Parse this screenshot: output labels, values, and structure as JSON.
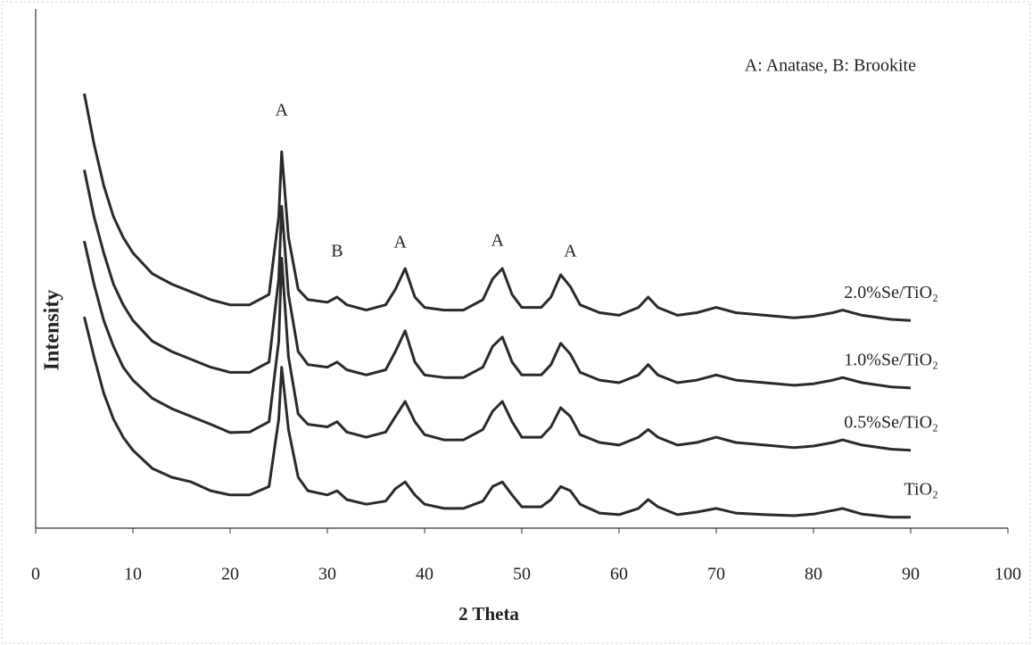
{
  "chart_data": {
    "type": "line",
    "x_label": "2  Theta",
    "y_label": "Intensity",
    "legend_note": "A: Anatase, B: Brookite",
    "annotations": [
      {
        "text": "A",
        "x": 25.3
      },
      {
        "text": "B",
        "x": 31
      },
      {
        "text": "A",
        "x": 37.5
      },
      {
        "text": "A",
        "x": 47.5
      },
      {
        "text": "A",
        "x": 55
      }
    ],
    "x": [
      5,
      6,
      7,
      8,
      9,
      10,
      12,
      14,
      16,
      18,
      20,
      22,
      24,
      25,
      25.3,
      26,
      27,
      28,
      30,
      31,
      32,
      34,
      36,
      37,
      38,
      39,
      40,
      42,
      44,
      46,
      47,
      48,
      49,
      50,
      52,
      53,
      54,
      55,
      56,
      58,
      60,
      62,
      63,
      64,
      66,
      68,
      70,
      72,
      75,
      78,
      80,
      82,
      83,
      85,
      88,
      90
    ],
    "series": [
      {
        "name": "2.0%Se/TiO₂",
        "color": "#2a2a2a",
        "values": [
          83.7,
          74,
          66,
          60,
          56,
          53,
          49,
          47,
          45.5,
          44,
          43,
          43,
          45,
          60,
          72.5,
          56,
          46,
          44,
          43.5,
          44.5,
          43,
          42,
          43,
          46,
          50,
          44.5,
          42.5,
          42,
          42,
          44,
          48,
          50,
          45,
          42.5,
          42.5,
          44.5,
          48.8,
          46.5,
          43,
          41.5,
          41,
          42.5,
          44.5,
          42.5,
          41,
          41.5,
          42.5,
          41.5,
          41,
          40.5,
          40.8,
          41.5,
          42,
          41,
          40.2,
          40
        ]
      },
      {
        "name": "1.0%Se/TiO₂",
        "color": "#2a2a2a",
        "values": [
          69,
          60,
          53,
          47,
          43,
          40,
          36,
          34,
          32.5,
          31,
          30,
          30,
          32,
          48,
          62,
          45,
          34,
          31.5,
          31,
          32,
          30.5,
          29.5,
          30.5,
          34,
          38,
          32,
          29.5,
          29,
          29,
          31,
          35,
          36.8,
          32,
          29.5,
          29.5,
          31.5,
          35.6,
          33.5,
          30,
          28.5,
          28,
          29.5,
          31.5,
          29.5,
          28,
          28.5,
          29.5,
          28.5,
          28,
          27.5,
          27.8,
          28.5,
          29,
          28,
          27.2,
          27
        ]
      },
      {
        "name": "0.5%Se/TiO₂",
        "color": "#2a2a2a",
        "values": [
          55.3,
          47,
          40,
          35,
          31,
          28.5,
          25,
          23,
          21.5,
          20,
          18.4,
          18.5,
          20.5,
          36,
          52,
          33,
          22,
          20,
          19.5,
          20.5,
          18.5,
          17.5,
          18.5,
          21.5,
          24.4,
          20.5,
          18,
          17,
          17,
          19,
          22.5,
          24.4,
          20.5,
          17.5,
          17.5,
          19.5,
          23.2,
          21.5,
          18,
          16.5,
          16,
          17.5,
          19,
          17.5,
          16,
          16.5,
          17.5,
          16.5,
          16,
          15.5,
          15.8,
          16.5,
          17,
          16,
          15.2,
          15
        ]
      },
      {
        "name": "TiO₂",
        "color": "#2a2a2a",
        "values": [
          40.7,
          33,
          26,
          21,
          17.5,
          15,
          11.5,
          9.8,
          8.9,
          7.2,
          6.4,
          6.4,
          8,
          21,
          31,
          19,
          9.8,
          7.2,
          6.4,
          7.2,
          5.5,
          4.6,
          5.2,
          7.6,
          8.9,
          6.4,
          4.6,
          3.8,
          3.8,
          5.2,
          8,
          8.9,
          6.4,
          4.1,
          4.1,
          5.5,
          8,
          7.2,
          4.6,
          2.9,
          2.6,
          3.8,
          5.5,
          4.1,
          2.6,
          3.1,
          3.8,
          2.9,
          2.6,
          2.4,
          2.7,
          3.4,
          3.8,
          2.7,
          2.1,
          2.1
        ]
      }
    ],
    "xlim": [
      0,
      100
    ],
    "xticks": [
      0,
      10,
      20,
      30,
      40,
      50,
      60,
      70,
      80,
      90,
      100
    ],
    "ylim": [
      0,
      100
    ],
    "grid": false
  }
}
